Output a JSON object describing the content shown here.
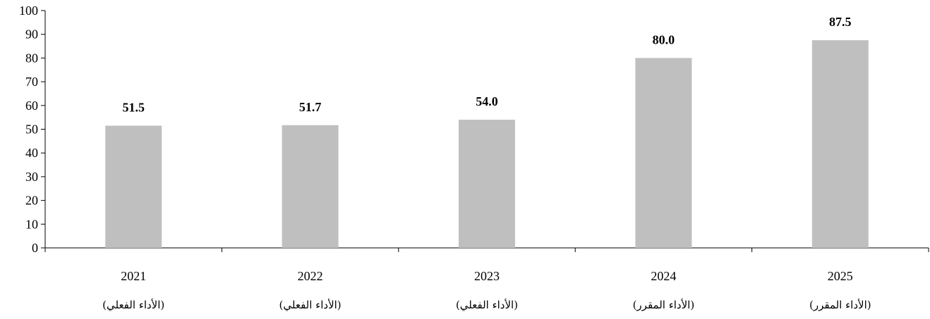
{
  "chart_data": {
    "type": "bar",
    "categories": [
      "2021",
      "2022",
      "2023",
      "2024",
      "2025"
    ],
    "category_sublabels": [
      "(الأداء الفعلي)",
      "(الأداء الفعلي)",
      "(الأداء الفعلي)",
      "(الأداء المقرر)",
      "(الأداء المقرر)"
    ],
    "values": [
      51.5,
      51.7,
      54.0,
      80.0,
      87.5
    ],
    "data_labels": [
      "51.5",
      "51.7",
      "54.0",
      "80.0",
      "87.5"
    ],
    "title": "",
    "xlabel": "",
    "ylabel": "",
    "ylim": [
      0,
      100
    ],
    "yticks": [
      0,
      10,
      20,
      30,
      40,
      50,
      60,
      70,
      80,
      90,
      100
    ],
    "bar_color": "#bfbfbf",
    "grid": false,
    "legend": "none"
  }
}
